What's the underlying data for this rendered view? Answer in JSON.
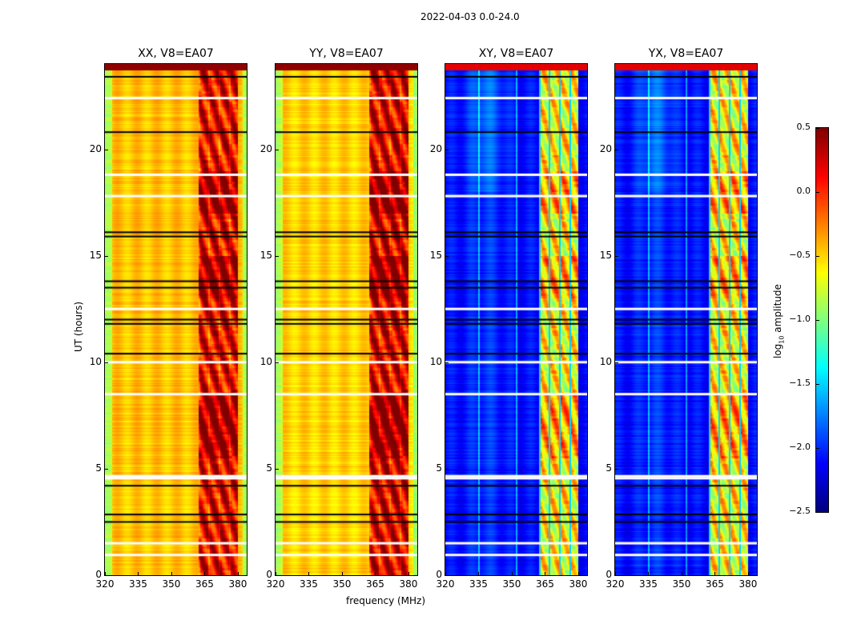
{
  "chart_data": {
    "type": "heatmap",
    "title": "2022-04-03 0.0-24.0",
    "xlabel": "frequency (MHz)",
    "ylabel": "UT (hours)",
    "xlim": [
      320,
      384
    ],
    "ylim": [
      0,
      24
    ],
    "xticks": [
      "320",
      "335",
      "350",
      "365",
      "380"
    ],
    "yticks": [
      "0",
      "5",
      "10",
      "15",
      "20"
    ],
    "colormap": "jet",
    "colorbar": {
      "label": "log10 amplitude",
      "label_base": "log",
      "label_sub": "10",
      "label_rest": " amplitude",
      "clim": [
        -2.5,
        0.5
      ],
      "ticks": [
        "0.5",
        "0.0",
        "−0.5",
        "−1.0",
        "−1.5",
        "−2.0",
        "−2.5"
      ]
    },
    "panels": [
      {
        "title": "XX, V8=EA07",
        "baseline": -0.45,
        "rfi_level": 0.15
      },
      {
        "title": "YY, V8=EA07",
        "baseline": -0.5,
        "rfi_level": 0.2
      },
      {
        "title": "XY, V8=EA07",
        "baseline": -2.1,
        "rfi_level": -0.6
      },
      {
        "title": "YX, V8=EA07",
        "baseline": -2.1,
        "rfi_level": -0.6
      }
    ],
    "rfi_band_mhz": [
      362,
      380
    ],
    "flagged_white_ut": [
      0.95,
      1.5,
      4.55,
      4.65,
      8.5,
      10.0,
      12.5,
      17.8,
      18.8,
      22.4
    ],
    "flagged_black_ut": [
      2.5,
      2.85,
      4.2,
      10.4,
      11.8,
      12.0,
      13.5,
      13.8,
      15.9,
      16.1,
      20.8,
      23.4
    ]
  }
}
